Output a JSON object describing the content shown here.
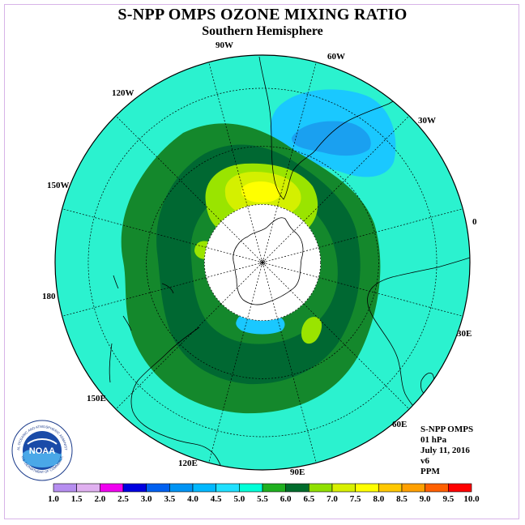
{
  "title": "S-NPP OMPS OZONE MIXING RATIO",
  "subtitle": "Southern Hemisphere",
  "lon_labels": [
    "90W",
    "60W",
    "30W",
    "0",
    "30E",
    "60E",
    "90E",
    "120E",
    "150E",
    "180",
    "150W",
    "120W"
  ],
  "info": {
    "line1": "S-NPP OMPS",
    "line2": "01 hPa",
    "line3": "July 11, 2016",
    "line4": "v6",
    "line5": "PPM"
  },
  "logo": {
    "text": "NOAA",
    "ring_text": "NATIONAL OCEANIC AND ATMOSPHERIC ADMINISTRATION",
    "lower_text": "U.S. DEPARTMENT OF COMMERCE"
  },
  "colorbar": {
    "labels": [
      "1.0",
      "1.5",
      "2.0",
      "2.5",
      "3.0",
      "3.5",
      "4.0",
      "4.5",
      "5.0",
      "5.5",
      "6.0",
      "6.5",
      "7.0",
      "7.5",
      "8.0",
      "8.5",
      "9.0",
      "9.5",
      "10.0"
    ],
    "colors": [
      "#b68ef0",
      "#e0b0f0",
      "#f000f0",
      "#0000e0",
      "#0060f0",
      "#0094f4",
      "#00b8ff",
      "#20e0ff",
      "#00ffd8",
      "#20b020",
      "#006c2c",
      "#90e000",
      "#d8f000",
      "#ffff00",
      "#ffc800",
      "#ffa000",
      "#ff6000",
      "#ff0000",
      "#8b5a3c"
    ]
  },
  "colors": {
    "background_field": "#2bf2cf",
    "band_5_5": "#14882c",
    "band_6_0": "#006832",
    "band_6_5": "#9ae400",
    "band_7_0": "#d4f000",
    "band_7_5": "#ffff00",
    "band_3_5": "#1aa0f0",
    "band_4_0": "#1ac8ff"
  }
}
